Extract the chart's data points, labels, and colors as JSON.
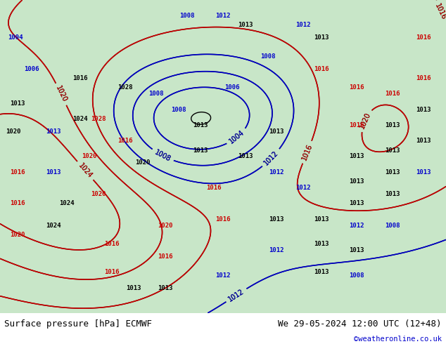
{
  "title_left": "Surface pressure [hPa] ECMWF",
  "title_right": "We 29-05-2024 12:00 UTC (12+48)",
  "copyright": "©weatheronline.co.uk",
  "bg_color": "#c8e6c8",
  "land_color": "#c8e6c8",
  "water_color": "#d0e8f0",
  "text_color_black": "#000000",
  "text_color_blue": "#0000cc",
  "text_color_red": "#cc0000",
  "footer_bg": "#e8e8e8",
  "figsize": [
    6.34,
    4.9
  ],
  "dpi": 100
}
